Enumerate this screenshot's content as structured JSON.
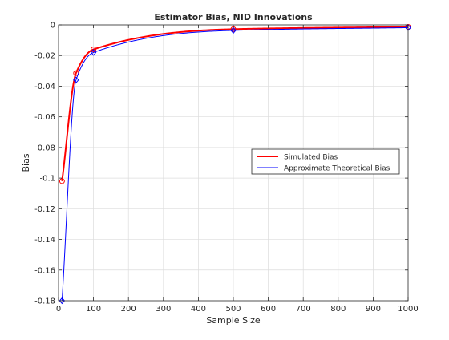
{
  "chart_data": {
    "type": "line",
    "title": "Estimator Bias, NID Innovations",
    "xlabel": "Sample Size",
    "ylabel": "Bias",
    "xlim": [
      0,
      1000
    ],
    "ylim": [
      -0.18,
      0
    ],
    "xticks": [
      0,
      100,
      200,
      300,
      400,
      500,
      600,
      700,
      800,
      900,
      1000
    ],
    "yticks": [
      -0.18,
      -0.16,
      -0.14,
      -0.12,
      -0.1,
      -0.08,
      -0.06,
      -0.04,
      -0.02,
      0
    ],
    "xtick_labels": [
      "0",
      "100",
      "200",
      "300",
      "400",
      "500",
      "600",
      "700",
      "800",
      "900",
      "1000"
    ],
    "ytick_labels": [
      "-0.18",
      "-0.16",
      "-0.14",
      "-0.12",
      "-0.1",
      "-0.08",
      "-0.06",
      "-0.04",
      "-0.02",
      "0"
    ],
    "grid": true,
    "legend_position": "center-right",
    "series": [
      {
        "name": "Simulated Bias",
        "color": "#ff0000",
        "marker": "circle",
        "x": [
          10,
          50,
          100,
          500,
          1000
        ],
        "y": [
          -0.102,
          -0.0315,
          -0.016,
          -0.0028,
          -0.0013
        ]
      },
      {
        "name": "Approximate Theoretical Bias",
        "color": "#0000ff",
        "marker": "diamond",
        "x": [
          10,
          50,
          100,
          500,
          1000
        ],
        "y": [
          -0.18,
          -0.036,
          -0.018,
          -0.0036,
          -0.0018
        ]
      }
    ]
  }
}
